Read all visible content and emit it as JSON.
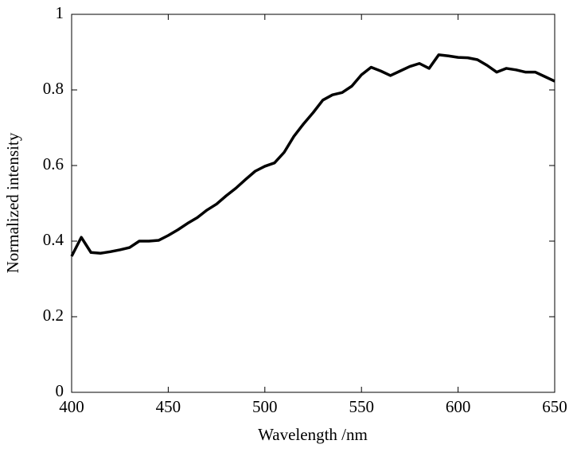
{
  "chart_data": {
    "type": "line",
    "xlabel": "Wavelength /nm",
    "ylabel": "Normalized intensity",
    "x": [
      400,
      405,
      410,
      415,
      420,
      425,
      430,
      435,
      440,
      445,
      450,
      455,
      460,
      465,
      470,
      475,
      480,
      485,
      490,
      495,
      500,
      505,
      510,
      515,
      520,
      525,
      530,
      535,
      540,
      545,
      550,
      555,
      560,
      565,
      570,
      575,
      580,
      585,
      590,
      595,
      600,
      605,
      610,
      615,
      620,
      625,
      630,
      635,
      640,
      645,
      650
    ],
    "series": [
      {
        "name": "Normalized intensity",
        "color": "#000000",
        "values": [
          0.36,
          0.41,
          0.37,
          0.368,
          0.372,
          0.377,
          0.383,
          0.4,
          0.4,
          0.402,
          0.415,
          0.43,
          0.447,
          0.462,
          0.482,
          0.498,
          0.52,
          0.54,
          0.563,
          0.585,
          0.598,
          0.607,
          0.635,
          0.677,
          0.71,
          0.74,
          0.773,
          0.787,
          0.793,
          0.81,
          0.84,
          0.86,
          0.85,
          0.838,
          0.85,
          0.862,
          0.87,
          0.857,
          0.893,
          0.89,
          0.886,
          0.885,
          0.88,
          0.865,
          0.847,
          0.857,
          0.853,
          0.847,
          0.847,
          0.835,
          0.823
        ]
      }
    ],
    "xlim": [
      400,
      650
    ],
    "xticks": [
      400,
      450,
      500,
      550,
      600,
      650
    ],
    "ylim": [
      0,
      1
    ],
    "yticks": [
      0,
      0.2,
      0.4,
      0.6,
      0.8,
      1
    ],
    "grid": false
  }
}
